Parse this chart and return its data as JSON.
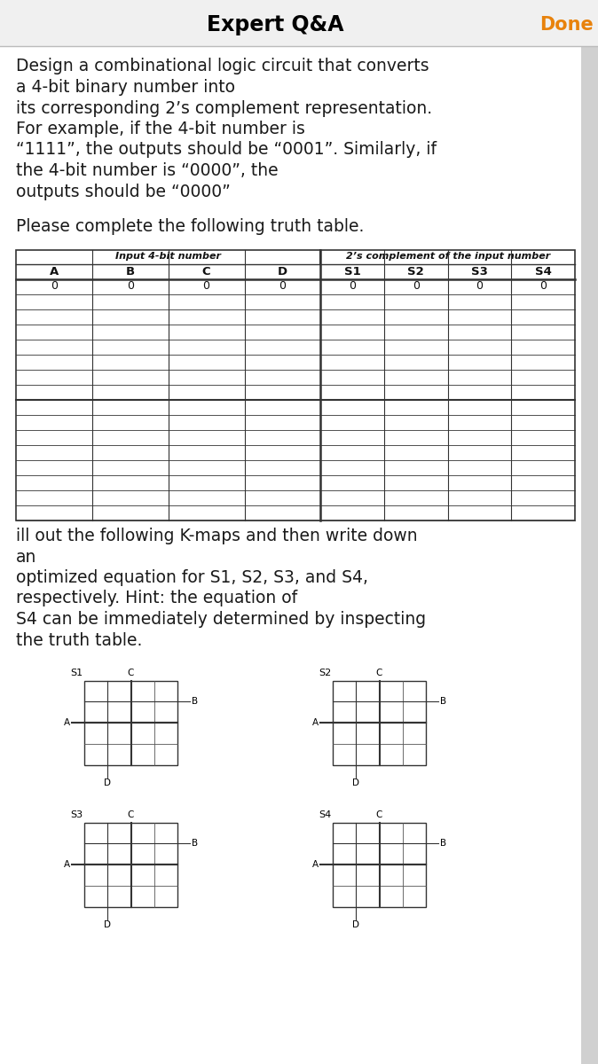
{
  "title": "Expert Q&A",
  "done_text": "Done",
  "title_color": "#000000",
  "done_color": "#E8820C",
  "bg_color": "#f0f0f0",
  "content_bg": "#ffffff",
  "body_text_lines": [
    "Design a combinational logic circuit that converts",
    "a 4-bit binary number into",
    "its corresponding 2’s complement representation.",
    "For example, if the 4-bit number is",
    "“1111”, the outputs should be “0001”. Similarly, if",
    "the 4-bit number is “0000”, the",
    "outputs should be “0000”"
  ],
  "table_title": "Please complete the following truth table.",
  "table_headers_top": [
    "Input 4-bit number",
    "2’s complement of the input number"
  ],
  "table_headers": [
    "A",
    "B",
    "C",
    "D",
    "S1",
    "S2",
    "S3",
    "S4"
  ],
  "table_first_row": [
    "0",
    "0",
    "0",
    "0",
    "0",
    "0",
    "0",
    "0"
  ],
  "num_data_rows": 16,
  "kmap_text_lines": [
    "ill out the following K-maps and then write down",
    "an",
    "optimized equation for S1, S2, S3, and S4,",
    "respectively. Hint: the equation of",
    "S4 can be immediately determined by inspecting",
    "the truth table."
  ],
  "kmap_labels": [
    "S1",
    "S2",
    "S3",
    "S4"
  ],
  "text_fontsize": 13.5,
  "table_fontsize": 9,
  "kmap_fontsize": 7.5
}
